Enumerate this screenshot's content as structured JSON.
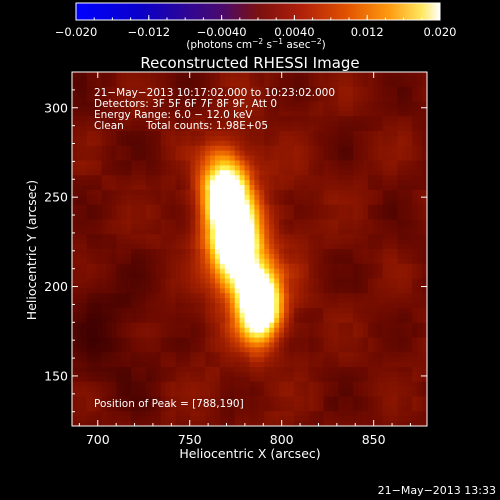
{
  "chart_data": {
    "type": "heatmap",
    "title": "Reconstructed RHESSI Image",
    "xlabel": "Heliocentric X (arcsec)",
    "ylabel": "Heliocentric Y (arcsec)",
    "xlim": [
      686,
      879
    ],
    "ylim": [
      122,
      320
    ],
    "x_ticks": [
      700,
      750,
      800,
      850
    ],
    "y_ticks": [
      150,
      200,
      250,
      300
    ],
    "colorbar": {
      "range": [
        -0.02,
        0.02
      ],
      "tick_values": [
        -0.02,
        -0.012,
        -0.004,
        0.004,
        0.012,
        0.02
      ],
      "tick_labels": [
        "−0.020",
        "−0.012",
        "−0.0040",
        "0.0040",
        "0.012",
        "0.020"
      ],
      "units_main": "(photons cm",
      "units_sup1": "−2",
      "units_mid": " s",
      "units_sup2": "−1",
      "units_mid2": " asec",
      "units_sup3": "−2",
      "units_end": ")"
    },
    "info": {
      "time_range": "21−May−2013 10:17:02.000 to 10:23:02.000",
      "detectors": "Detectors: 3F 5F 6F 7F 8F 9F, Att 0",
      "energy": "Energy Range: 6.0 − 12.0 keV",
      "method": "Clean",
      "counts": "Total counts: 1.98E+05"
    },
    "peak_label": "Position of Peak = [788,190]",
    "peak": [
      788,
      190
    ],
    "sources": [
      {
        "x": 788,
        "y": 190,
        "amplitude": 1.0,
        "sigma_x": 8,
        "sigma_y": 14
      },
      {
        "x": 775,
        "y": 222,
        "amplitude": 0.88,
        "sigma_x": 9,
        "sigma_y": 16
      },
      {
        "x": 769,
        "y": 252,
        "amplitude": 0.78,
        "sigma_x": 9,
        "sigma_y": 16
      }
    ],
    "background_level": 0.33,
    "footer_timestamp": "21−May−2013 13:33"
  }
}
